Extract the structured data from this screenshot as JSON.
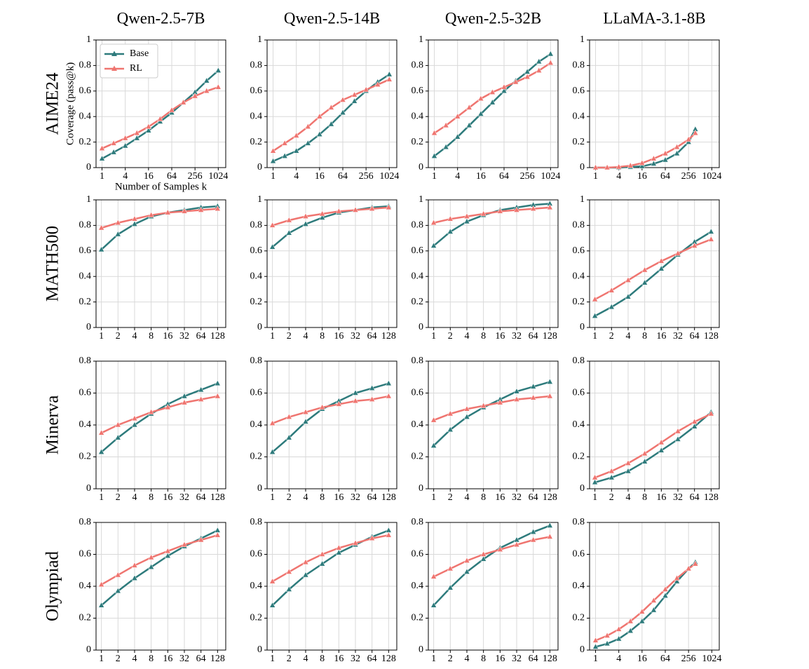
{
  "chart_data": [
    {
      "type": "line",
      "title": "Qwen-2.5-7B",
      "row_label": "AIME24",
      "ylabel": "Coverage (pass@k)",
      "xlabel": "Number of Samples k",
      "legend": "upper left",
      "log_x": 2,
      "grid": true,
      "x": [
        1,
        2,
        4,
        8,
        16,
        32,
        64,
        128,
        256,
        512,
        1024
      ],
      "xlim": [
        0.7,
        1600
      ],
      "xticks": [
        1,
        4,
        16,
        64,
        256,
        1024
      ],
      "ylim": [
        0,
        1
      ],
      "yticks": [
        0,
        0.2,
        0.4,
        0.6,
        0.8,
        1
      ],
      "series": [
        {
          "name": "Base",
          "color": "#2e7b7c",
          "values": [
            0.07,
            0.12,
            0.17,
            0.23,
            0.29,
            0.36,
            0.43,
            0.51,
            0.59,
            0.68,
            0.76
          ]
        },
        {
          "name": "RL",
          "color": "#ef7570",
          "values": [
            0.15,
            0.19,
            0.23,
            0.27,
            0.32,
            0.38,
            0.45,
            0.51,
            0.56,
            0.6,
            0.63
          ]
        }
      ]
    },
    {
      "type": "line",
      "title": "Qwen-2.5-14B",
      "log_x": 2,
      "grid": true,
      "x": [
        1,
        2,
        4,
        8,
        16,
        32,
        64,
        128,
        256,
        512,
        1024
      ],
      "xlim": [
        0.7,
        1600
      ],
      "xticks": [
        1,
        4,
        16,
        64,
        256,
        1024
      ],
      "ylim": [
        0,
        1
      ],
      "yticks": [
        0,
        0.2,
        0.4,
        0.6,
        0.8,
        1
      ],
      "series": [
        {
          "name": "Base",
          "color": "#2e7b7c",
          "values": [
            0.05,
            0.09,
            0.13,
            0.19,
            0.26,
            0.34,
            0.43,
            0.52,
            0.6,
            0.67,
            0.73
          ]
        },
        {
          "name": "RL",
          "color": "#ef7570",
          "values": [
            0.13,
            0.19,
            0.25,
            0.32,
            0.4,
            0.47,
            0.53,
            0.57,
            0.61,
            0.65,
            0.69
          ]
        }
      ]
    },
    {
      "type": "line",
      "title": "Qwen-2.5-32B",
      "log_x": 2,
      "grid": true,
      "x": [
        1,
        2,
        4,
        8,
        16,
        32,
        64,
        128,
        256,
        512,
        1024
      ],
      "xlim": [
        0.7,
        1600
      ],
      "xticks": [
        1,
        4,
        16,
        64,
        256,
        1024
      ],
      "ylim": [
        0,
        1
      ],
      "yticks": [
        0,
        0.2,
        0.4,
        0.6,
        0.8,
        1
      ],
      "series": [
        {
          "name": "Base",
          "color": "#2e7b7c",
          "values": [
            0.09,
            0.16,
            0.24,
            0.33,
            0.42,
            0.51,
            0.6,
            0.68,
            0.75,
            0.83,
            0.89
          ]
        },
        {
          "name": "RL",
          "color": "#ef7570",
          "values": [
            0.27,
            0.33,
            0.4,
            0.47,
            0.54,
            0.59,
            0.63,
            0.67,
            0.71,
            0.76,
            0.82
          ]
        }
      ]
    },
    {
      "type": "line",
      "title": "LLaMA-3.1-8B",
      "log_x": 2,
      "grid": true,
      "x": [
        1,
        2,
        4,
        8,
        16,
        32,
        64,
        128,
        256,
        384
      ],
      "xlim": [
        0.7,
        1600
      ],
      "xticks": [
        1,
        4,
        16,
        64,
        256,
        1024
      ],
      "ylim": [
        0,
        1
      ],
      "yticks": [
        0,
        0.2,
        0.4,
        0.6,
        0.8,
        1
      ],
      "series": [
        {
          "name": "Base",
          "color": "#2e7b7c",
          "values": [
            0,
            0,
            0,
            0.005,
            0.01,
            0.03,
            0.06,
            0.11,
            0.2,
            0.3
          ]
        },
        {
          "name": "RL",
          "color": "#ef7570",
          "values": [
            0,
            0,
            0.005,
            0.015,
            0.035,
            0.07,
            0.11,
            0.16,
            0.22,
            0.27
          ]
        }
      ]
    },
    {
      "type": "line",
      "row_label": "MATH500",
      "log_x": 2,
      "grid": true,
      "x": [
        1,
        2,
        4,
        8,
        16,
        32,
        64,
        128
      ],
      "xlim": [
        0.8,
        180
      ],
      "xticks": [
        1,
        2,
        4,
        8,
        16,
        32,
        64,
        128
      ],
      "ylim": [
        0,
        1
      ],
      "yticks": [
        0,
        0.2,
        0.4,
        0.6,
        0.8,
        1
      ],
      "series": [
        {
          "name": "Base",
          "color": "#2e7b7c",
          "values": [
            0.61,
            0.73,
            0.81,
            0.87,
            0.9,
            0.92,
            0.94,
            0.95
          ]
        },
        {
          "name": "RL",
          "color": "#ef7570",
          "values": [
            0.78,
            0.82,
            0.85,
            0.88,
            0.9,
            0.91,
            0.92,
            0.93
          ]
        }
      ]
    },
    {
      "type": "line",
      "log_x": 2,
      "grid": true,
      "x": [
        1,
        2,
        4,
        8,
        16,
        32,
        64,
        128
      ],
      "xlim": [
        0.8,
        180
      ],
      "xticks": [
        1,
        2,
        4,
        8,
        16,
        32,
        64,
        128
      ],
      "ylim": [
        0,
        1
      ],
      "yticks": [
        0,
        0.2,
        0.4,
        0.6,
        0.8,
        1
      ],
      "series": [
        {
          "name": "Base",
          "color": "#2e7b7c",
          "values": [
            0.63,
            0.74,
            0.81,
            0.86,
            0.9,
            0.92,
            0.94,
            0.95
          ]
        },
        {
          "name": "RL",
          "color": "#ef7570",
          "values": [
            0.8,
            0.84,
            0.87,
            0.89,
            0.91,
            0.92,
            0.93,
            0.94
          ]
        }
      ]
    },
    {
      "type": "line",
      "log_x": 2,
      "grid": true,
      "x": [
        1,
        2,
        4,
        8,
        16,
        32,
        64,
        128
      ],
      "xlim": [
        0.8,
        180
      ],
      "xticks": [
        1,
        2,
        4,
        8,
        16,
        32,
        64,
        128
      ],
      "ylim": [
        0,
        1
      ],
      "yticks": [
        0,
        0.2,
        0.4,
        0.6,
        0.8,
        1
      ],
      "series": [
        {
          "name": "Base",
          "color": "#2e7b7c",
          "values": [
            0.64,
            0.75,
            0.83,
            0.88,
            0.92,
            0.94,
            0.96,
            0.97
          ]
        },
        {
          "name": "RL",
          "color": "#ef7570",
          "values": [
            0.82,
            0.85,
            0.87,
            0.89,
            0.91,
            0.92,
            0.93,
            0.94
          ]
        }
      ]
    },
    {
      "type": "line",
      "log_x": 2,
      "grid": true,
      "x": [
        1,
        2,
        4,
        8,
        16,
        32,
        64,
        128
      ],
      "xlim": [
        0.8,
        180
      ],
      "xticks": [
        1,
        2,
        4,
        8,
        16,
        32,
        64,
        128
      ],
      "ylim": [
        0,
        1
      ],
      "yticks": [
        0,
        0.2,
        0.4,
        0.6,
        0.8,
        1
      ],
      "series": [
        {
          "name": "Base",
          "color": "#2e7b7c",
          "values": [
            0.09,
            0.16,
            0.24,
            0.35,
            0.46,
            0.57,
            0.67,
            0.75
          ]
        },
        {
          "name": "RL",
          "color": "#ef7570",
          "values": [
            0.22,
            0.29,
            0.37,
            0.45,
            0.52,
            0.58,
            0.64,
            0.69
          ]
        }
      ]
    },
    {
      "type": "line",
      "row_label": "Minerva",
      "log_x": 2,
      "grid": true,
      "x": [
        1,
        2,
        4,
        8,
        16,
        32,
        64,
        128
      ],
      "xlim": [
        0.8,
        180
      ],
      "xticks": [
        1,
        2,
        4,
        8,
        16,
        32,
        64,
        128
      ],
      "ylim": [
        0,
        0.8
      ],
      "yticks": [
        0,
        0.2,
        0.4,
        0.6,
        0.8
      ],
      "series": [
        {
          "name": "Base",
          "color": "#2e7b7c",
          "values": [
            0.23,
            0.32,
            0.4,
            0.47,
            0.53,
            0.58,
            0.62,
            0.66
          ]
        },
        {
          "name": "RL",
          "color": "#ef7570",
          "values": [
            0.35,
            0.4,
            0.44,
            0.48,
            0.51,
            0.54,
            0.56,
            0.58
          ]
        }
      ]
    },
    {
      "type": "line",
      "log_x": 2,
      "grid": true,
      "x": [
        1,
        2,
        4,
        8,
        16,
        32,
        64,
        128
      ],
      "xlim": [
        0.8,
        180
      ],
      "xticks": [
        1,
        2,
        4,
        8,
        16,
        32,
        64,
        128
      ],
      "ylim": [
        0,
        0.8
      ],
      "yticks": [
        0,
        0.2,
        0.4,
        0.6,
        0.8
      ],
      "series": [
        {
          "name": "Base",
          "color": "#2e7b7c",
          "values": [
            0.23,
            0.32,
            0.42,
            0.5,
            0.55,
            0.6,
            0.63,
            0.66
          ]
        },
        {
          "name": "RL",
          "color": "#ef7570",
          "values": [
            0.41,
            0.45,
            0.48,
            0.51,
            0.53,
            0.55,
            0.56,
            0.58
          ]
        }
      ]
    },
    {
      "type": "line",
      "log_x": 2,
      "grid": true,
      "x": [
        1,
        2,
        4,
        8,
        16,
        32,
        64,
        128
      ],
      "xlim": [
        0.8,
        180
      ],
      "xticks": [
        1,
        2,
        4,
        8,
        16,
        32,
        64,
        128
      ],
      "ylim": [
        0,
        0.8
      ],
      "yticks": [
        0,
        0.2,
        0.4,
        0.6,
        0.8
      ],
      "series": [
        {
          "name": "Base",
          "color": "#2e7b7c",
          "values": [
            0.27,
            0.37,
            0.45,
            0.51,
            0.56,
            0.61,
            0.64,
            0.67
          ]
        },
        {
          "name": "RL",
          "color": "#ef7570",
          "values": [
            0.43,
            0.47,
            0.5,
            0.52,
            0.54,
            0.56,
            0.57,
            0.58
          ]
        }
      ]
    },
    {
      "type": "line",
      "log_x": 2,
      "grid": true,
      "x": [
        1,
        2,
        4,
        8,
        16,
        32,
        64,
        128
      ],
      "xlim": [
        0.8,
        180
      ],
      "xticks": [
        1,
        2,
        4,
        8,
        16,
        32,
        64,
        128
      ],
      "ylim": [
        0,
        0.8
      ],
      "yticks": [
        0,
        0.2,
        0.4,
        0.6,
        0.8
      ],
      "series": [
        {
          "name": "Base",
          "color": "#2e7b7c",
          "values": [
            0.04,
            0.07,
            0.11,
            0.17,
            0.24,
            0.31,
            0.39,
            0.48
          ]
        },
        {
          "name": "RL",
          "color": "#ef7570",
          "values": [
            0.07,
            0.11,
            0.16,
            0.22,
            0.29,
            0.36,
            0.42,
            0.47
          ]
        }
      ]
    },
    {
      "type": "line",
      "row_label": "Olympiad",
      "log_x": 2,
      "grid": true,
      "x": [
        1,
        2,
        4,
        8,
        16,
        32,
        64,
        128
      ],
      "xlim": [
        0.8,
        180
      ],
      "xticks": [
        1,
        2,
        4,
        8,
        16,
        32,
        64,
        128
      ],
      "ylim": [
        0,
        0.8
      ],
      "yticks": [
        0,
        0.2,
        0.4,
        0.6,
        0.8
      ],
      "series": [
        {
          "name": "Base",
          "color": "#2e7b7c",
          "values": [
            0.28,
            0.37,
            0.45,
            0.52,
            0.59,
            0.65,
            0.7,
            0.75
          ]
        },
        {
          "name": "RL",
          "color": "#ef7570",
          "values": [
            0.41,
            0.47,
            0.53,
            0.58,
            0.62,
            0.66,
            0.69,
            0.72
          ]
        }
      ]
    },
    {
      "type": "line",
      "log_x": 2,
      "grid": true,
      "x": [
        1,
        2,
        4,
        8,
        16,
        32,
        64,
        128
      ],
      "xlim": [
        0.8,
        180
      ],
      "xticks": [
        1,
        2,
        4,
        8,
        16,
        32,
        64,
        128
      ],
      "ylim": [
        0,
        0.8
      ],
      "yticks": [
        0,
        0.2,
        0.4,
        0.6,
        0.8
      ],
      "series": [
        {
          "name": "Base",
          "color": "#2e7b7c",
          "values": [
            0.28,
            0.38,
            0.47,
            0.54,
            0.61,
            0.66,
            0.71,
            0.75
          ]
        },
        {
          "name": "RL",
          "color": "#ef7570",
          "values": [
            0.43,
            0.49,
            0.55,
            0.6,
            0.64,
            0.67,
            0.7,
            0.72
          ]
        }
      ]
    },
    {
      "type": "line",
      "log_x": 2,
      "grid": true,
      "x": [
        1,
        2,
        4,
        8,
        16,
        32,
        64,
        128
      ],
      "xlim": [
        0.8,
        180
      ],
      "xticks": [
        1,
        2,
        4,
        8,
        16,
        32,
        64,
        128
      ],
      "ylim": [
        0,
        0.8
      ],
      "yticks": [
        0,
        0.2,
        0.4,
        0.6,
        0.8
      ],
      "series": [
        {
          "name": "Base",
          "color": "#2e7b7c",
          "values": [
            0.28,
            0.39,
            0.49,
            0.57,
            0.64,
            0.69,
            0.74,
            0.78
          ]
        },
        {
          "name": "RL",
          "color": "#ef7570",
          "values": [
            0.46,
            0.51,
            0.56,
            0.6,
            0.63,
            0.66,
            0.69,
            0.71
          ]
        }
      ]
    },
    {
      "type": "line",
      "log_x": 2,
      "grid": true,
      "x": [
        1,
        2,
        4,
        8,
        16,
        32,
        64,
        128,
        256,
        384
      ],
      "xlim": [
        0.7,
        1600
      ],
      "xticks": [
        1,
        4,
        16,
        64,
        256,
        1024
      ],
      "ylim": [
        0,
        0.8
      ],
      "yticks": [
        0,
        0.2,
        0.4,
        0.6,
        0.8
      ],
      "series": [
        {
          "name": "Base",
          "color": "#2e7b7c",
          "values": [
            0.02,
            0.04,
            0.07,
            0.12,
            0.18,
            0.25,
            0.34,
            0.43,
            0.51,
            0.55
          ]
        },
        {
          "name": "RL",
          "color": "#ef7570",
          "values": [
            0.06,
            0.09,
            0.13,
            0.18,
            0.24,
            0.31,
            0.38,
            0.45,
            0.51,
            0.54
          ]
        }
      ]
    }
  ]
}
